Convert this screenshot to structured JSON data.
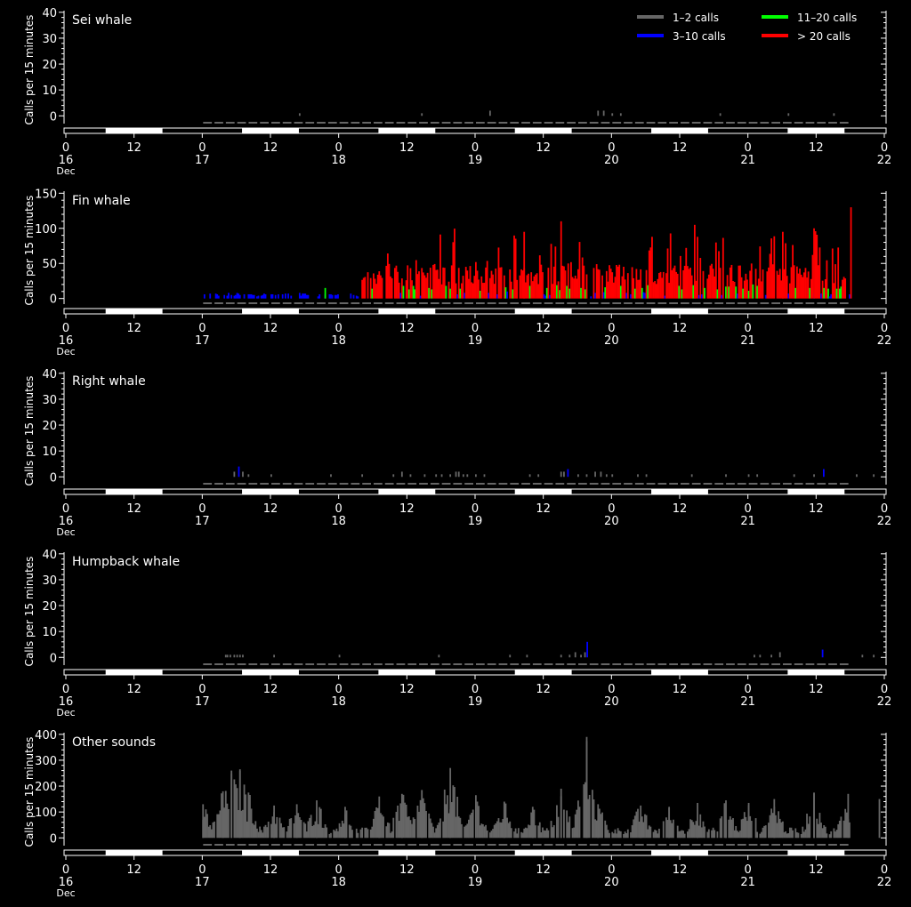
{
  "legend": {
    "items": [
      {
        "label": "1–2 calls",
        "color": "#666666"
      },
      {
        "label": "11–20 calls",
        "color": "#00ff00"
      },
      {
        "label": "3–10 calls",
        "color": "#0000ff"
      },
      {
        "label": "> 20 calls",
        "color": "#ff0000"
      }
    ]
  },
  "colors": {
    "background": "#000000",
    "axis": "#ffffff",
    "gray_bar": "#666666",
    "blue_bar": "#0000ff",
    "green_bar": "#00ff00",
    "red_bar": "#ff0000"
  },
  "x_axis": {
    "major_labels": [
      "0",
      "12",
      "0",
      "12",
      "0",
      "12",
      "0",
      "12",
      "0",
      "12",
      "0",
      "12",
      "0"
    ],
    "day_labels": [
      "16",
      "17",
      "18",
      "19",
      "20",
      "21",
      "22"
    ],
    "month_label": "Dec",
    "range_hours": [
      0,
      144
    ],
    "data_start_hour": 24,
    "data_end_hour": 138,
    "night_bands_hours": [
      [
        7,
        17
      ],
      [
        31,
        41
      ],
      [
        55,
        65
      ],
      [
        79,
        89
      ],
      [
        103,
        113
      ],
      [
        127,
        137
      ]
    ]
  },
  "chart_data": [
    {
      "type": "bar",
      "title": "Sei whale",
      "ylabel": "Calls per 15 minutes",
      "yticks": [
        0,
        10,
        20,
        30,
        40
      ],
      "ylim": [
        -3,
        42
      ],
      "events": [
        {
          "x": 41.0,
          "y": 1
        },
        {
          "x": 62.5,
          "y": 1
        },
        {
          "x": 74.5,
          "y": 2
        },
        {
          "x": 93.5,
          "y": 2
        },
        {
          "x": 94.5,
          "y": 2
        },
        {
          "x": 96.0,
          "y": 1
        },
        {
          "x": 97.5,
          "y": 1
        },
        {
          "x": 115.0,
          "y": 1
        },
        {
          "x": 127.0,
          "y": 1
        },
        {
          "x": 135.0,
          "y": 1
        }
      ]
    },
    {
      "type": "bar",
      "title": "Fin whale",
      "ylabel": "Calls per 15 minutes",
      "yticks": [
        0,
        50,
        100,
        150
      ],
      "ylim": [
        -8,
        158
      ]
    },
    {
      "type": "bar",
      "title": "Right whale",
      "ylabel": "Calls per 15 minutes",
      "yticks": [
        0,
        10,
        20,
        30,
        40
      ],
      "ylim": [
        -3,
        42
      ],
      "events": [
        {
          "x": 29.5,
          "y": 2
        },
        {
          "x": 30.3,
          "y": 4
        },
        {
          "x": 31.0,
          "y": 2
        },
        {
          "x": 32.0,
          "y": 1
        },
        {
          "x": 36.0,
          "y": 1
        },
        {
          "x": 46.5,
          "y": 1
        },
        {
          "x": 52.0,
          "y": 1
        },
        {
          "x": 57.5,
          "y": 1
        },
        {
          "x": 59.0,
          "y": 2
        },
        {
          "x": 60.5,
          "y": 1
        },
        {
          "x": 63.0,
          "y": 1
        },
        {
          "x": 65.0,
          "y": 1
        },
        {
          "x": 66.0,
          "y": 1
        },
        {
          "x": 67.5,
          "y": 1
        },
        {
          "x": 68.5,
          "y": 2
        },
        {
          "x": 69.0,
          "y": 2
        },
        {
          "x": 69.8,
          "y": 1
        },
        {
          "x": 70.5,
          "y": 1
        },
        {
          "x": 72.0,
          "y": 1
        },
        {
          "x": 73.5,
          "y": 1
        },
        {
          "x": 81.5,
          "y": 1
        },
        {
          "x": 83.0,
          "y": 1
        },
        {
          "x": 87.0,
          "y": 2
        },
        {
          "x": 87.5,
          "y": 2
        },
        {
          "x": 88.2,
          "y": 3
        },
        {
          "x": 90.0,
          "y": 1
        },
        {
          "x": 91.5,
          "y": 1
        },
        {
          "x": 93.0,
          "y": 2
        },
        {
          "x": 94.0,
          "y": 2
        },
        {
          "x": 95.0,
          "y": 1
        },
        {
          "x": 96.0,
          "y": 1
        },
        {
          "x": 100.5,
          "y": 1
        },
        {
          "x": 102.0,
          "y": 1
        },
        {
          "x": 110.0,
          "y": 1
        },
        {
          "x": 116.0,
          "y": 1
        },
        {
          "x": 120.0,
          "y": 1
        },
        {
          "x": 121.5,
          "y": 1
        },
        {
          "x": 128.0,
          "y": 1
        },
        {
          "x": 131.5,
          "y": 1
        },
        {
          "x": 133.2,
          "y": 3
        },
        {
          "x": 139.0,
          "y": 1
        },
        {
          "x": 142.0,
          "y": 1
        }
      ]
    },
    {
      "type": "bar",
      "title": "Humpback whale",
      "ylabel": "Calls per 15 minutes",
      "yticks": [
        0,
        10,
        20,
        30,
        40
      ],
      "ylim": [
        -3,
        42
      ],
      "events": [
        {
          "x": 28.0,
          "y": 1
        },
        {
          "x": 28.3,
          "y": 1
        },
        {
          "x": 28.8,
          "y": 1
        },
        {
          "x": 29.5,
          "y": 1
        },
        {
          "x": 30.0,
          "y": 1
        },
        {
          "x": 30.5,
          "y": 1
        },
        {
          "x": 31.0,
          "y": 1
        },
        {
          "x": 36.5,
          "y": 1
        },
        {
          "x": 48.0,
          "y": 1
        },
        {
          "x": 65.5,
          "y": 1
        },
        {
          "x": 78.0,
          "y": 1
        },
        {
          "x": 81.0,
          "y": 1
        },
        {
          "x": 87.0,
          "y": 1
        },
        {
          "x": 88.5,
          "y": 1
        },
        {
          "x": 89.5,
          "y": 2
        },
        {
          "x": 90.5,
          "y": 1
        },
        {
          "x": 91.2,
          "y": 2
        },
        {
          "x": 91.6,
          "y": 6
        },
        {
          "x": 121.0,
          "y": 1
        },
        {
          "x": 122.0,
          "y": 1
        },
        {
          "x": 124.0,
          "y": 1
        },
        {
          "x": 125.5,
          "y": 2
        },
        {
          "x": 133.0,
          "y": 3
        },
        {
          "x": 140.0,
          "y": 1
        },
        {
          "x": 142.0,
          "y": 1
        }
      ]
    },
    {
      "type": "bar",
      "title": "Other sounds",
      "ylabel": "Calls per 15 minutes",
      "yticks": [
        0,
        100,
        200,
        300,
        400
      ],
      "ylim": [
        -30,
        420
      ],
      "peaks": [
        {
          "x": 24.0,
          "y": 130
        },
        {
          "x": 27.5,
          "y": 180
        },
        {
          "x": 29.0,
          "y": 260
        },
        {
          "x": 30.5,
          "y": 265
        },
        {
          "x": 32.0,
          "y": 175
        },
        {
          "x": 36.5,
          "y": 125
        },
        {
          "x": 40.5,
          "y": 130
        },
        {
          "x": 44.0,
          "y": 145
        },
        {
          "x": 49.0,
          "y": 120
        },
        {
          "x": 55.0,
          "y": 160
        },
        {
          "x": 59.0,
          "y": 170
        },
        {
          "x": 62.5,
          "y": 185
        },
        {
          "x": 67.5,
          "y": 270
        },
        {
          "x": 72.0,
          "y": 165
        },
        {
          "x": 77.0,
          "y": 140
        },
        {
          "x": 82.0,
          "y": 120
        },
        {
          "x": 87.0,
          "y": 190
        },
        {
          "x": 91.5,
          "y": 390
        },
        {
          "x": 93.5,
          "y": 130
        },
        {
          "x": 101.0,
          "y": 125
        },
        {
          "x": 106.0,
          "y": 120
        },
        {
          "x": 111.0,
          "y": 135
        },
        {
          "x": 116.0,
          "y": 145
        },
        {
          "x": 120.0,
          "y": 135
        },
        {
          "x": 124.5,
          "y": 150
        },
        {
          "x": 131.5,
          "y": 175
        },
        {
          "x": 137.5,
          "y": 170
        },
        {
          "x": 143.0,
          "y": 150
        }
      ]
    }
  ]
}
